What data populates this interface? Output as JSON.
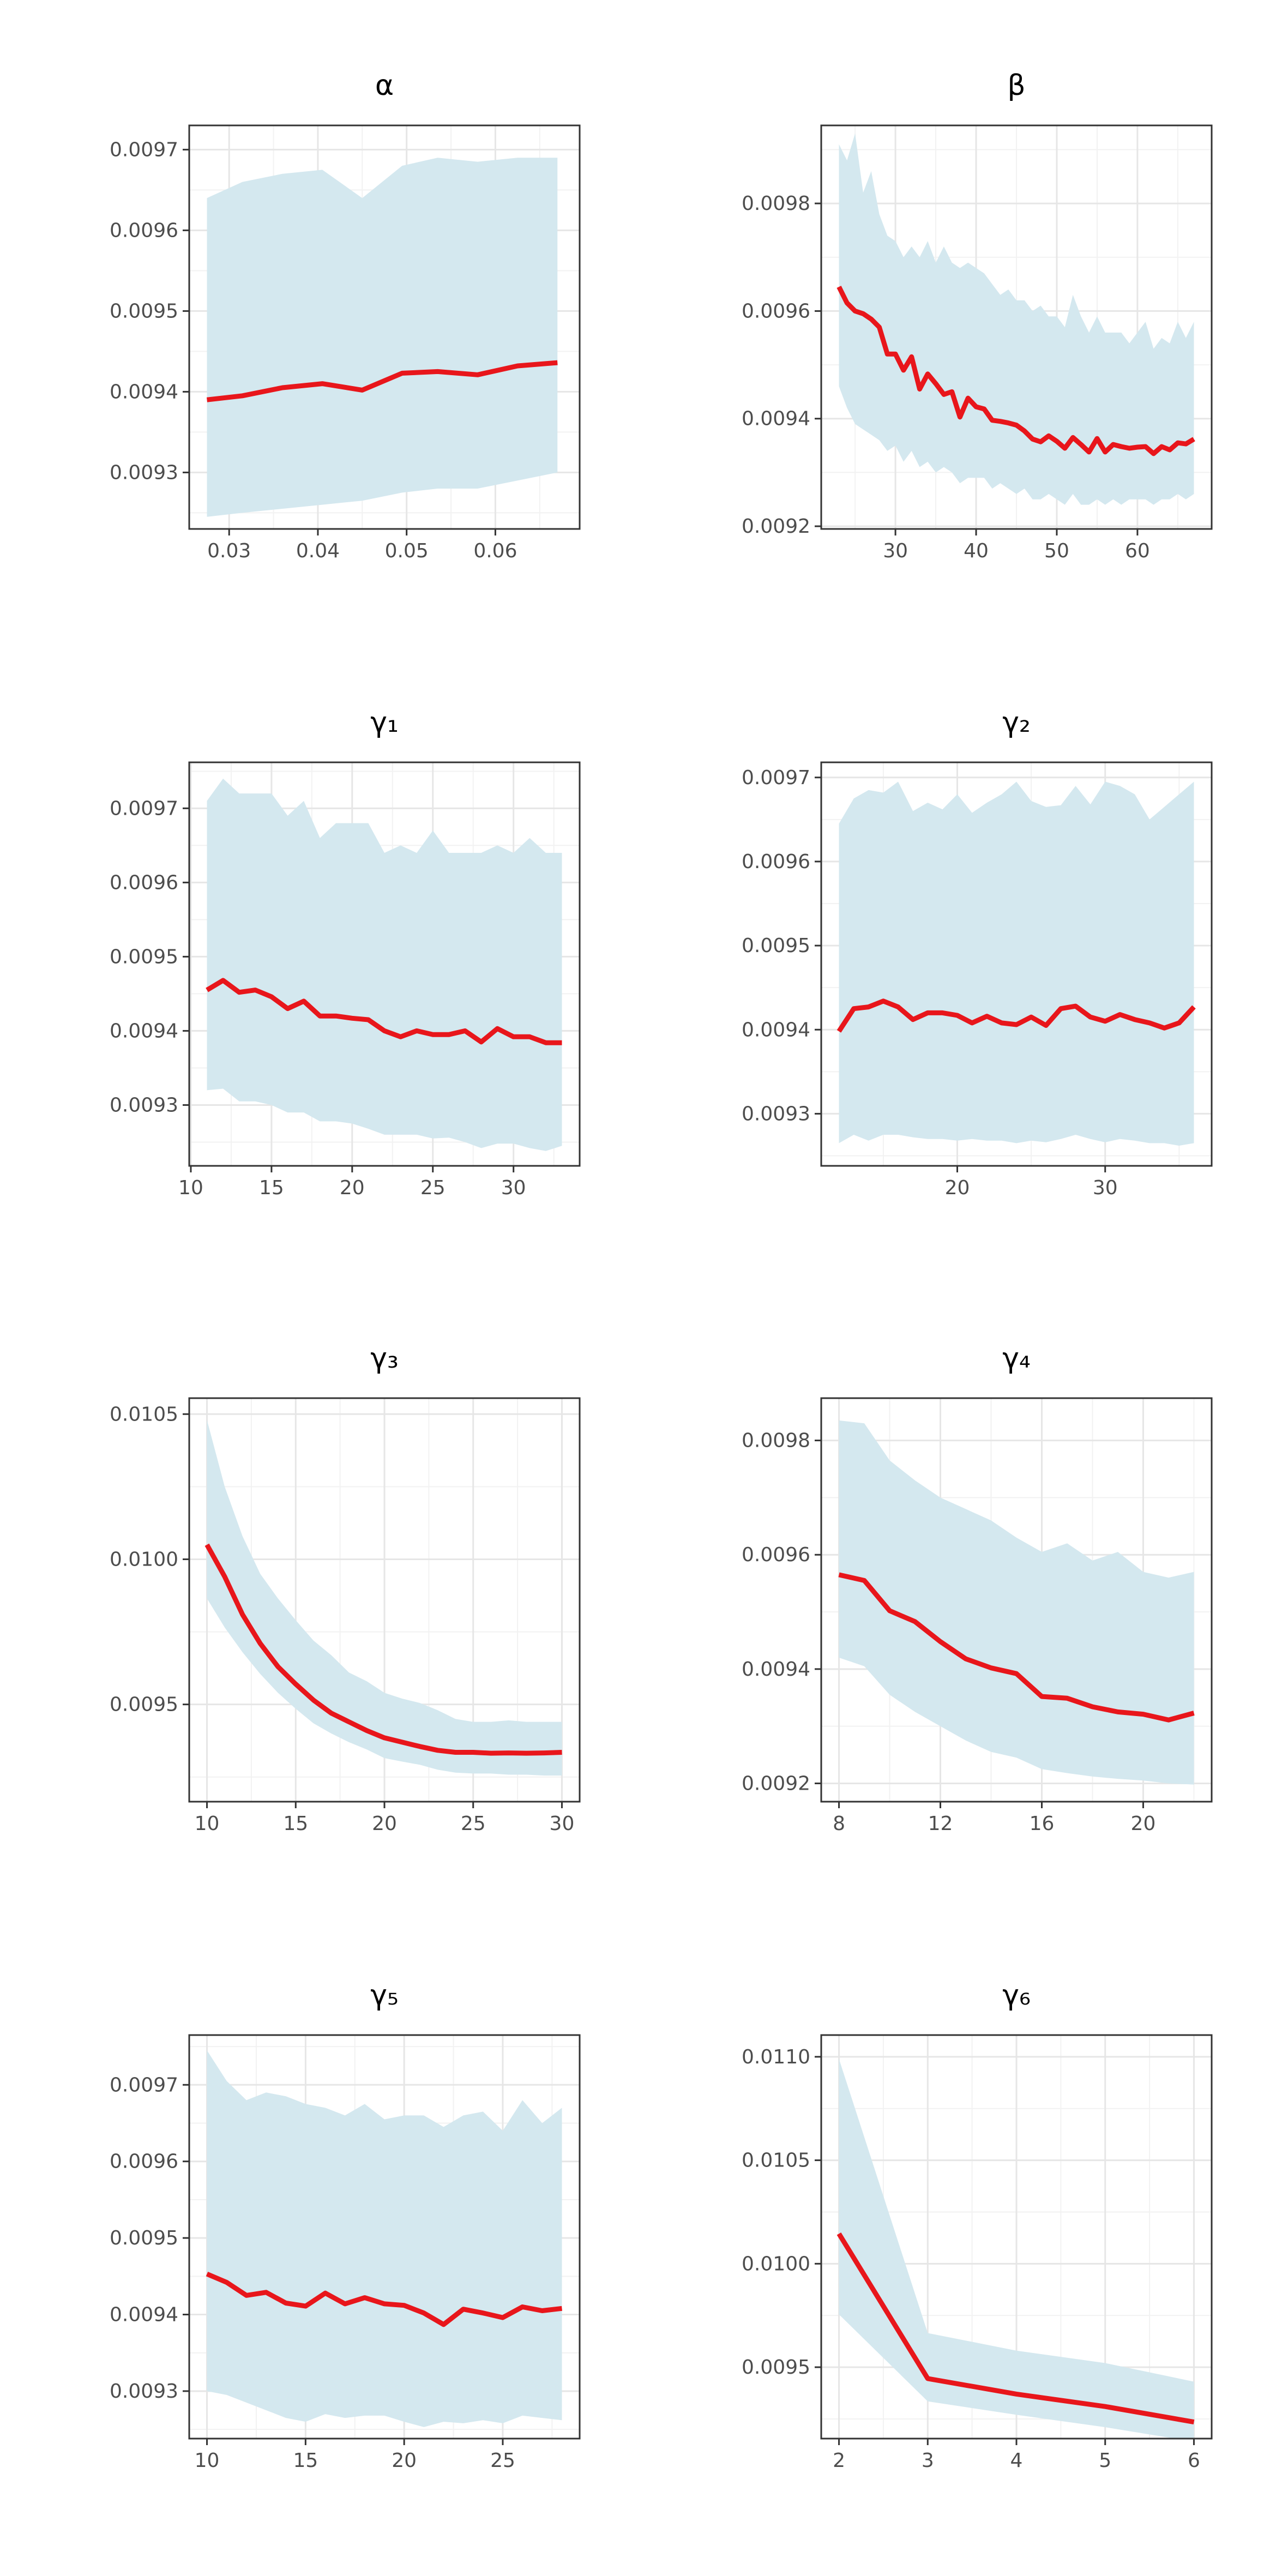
{
  "colors": {
    "line": "#e8161b",
    "band": "#d4e8ef",
    "grid_major": "#e6e6e6",
    "grid_minor": "#f2f2f2",
    "frame": "#333333",
    "tick_text": "#4d4d4d"
  },
  "chart_data": [
    {
      "type": "area",
      "title": "α",
      "xlabel": "",
      "ylabel": "",
      "grid": true,
      "xlim": [
        0.0255,
        0.0695
      ],
      "ylim": [
        0.00923,
        0.00973
      ],
      "xticks": [
        0.03,
        0.04,
        0.05,
        0.06
      ],
      "xtick_labels": [
        "0.03",
        "0.04",
        "0.05",
        "0.06"
      ],
      "yticks": [
        0.0093,
        0.0094,
        0.0095,
        0.0096,
        0.0097
      ],
      "ytick_labels": [
        "0.0093",
        "0.0094",
        "0.0095",
        "0.0096",
        "0.0097"
      ],
      "x": [
        0.0275,
        0.0315,
        0.036,
        0.0405,
        0.045,
        0.0495,
        0.0535,
        0.058,
        0.0625,
        0.067
      ],
      "mean": [
        0.00939,
        0.009395,
        0.009405,
        0.00941,
        0.009402,
        0.009423,
        0.009425,
        0.009421,
        0.009432,
        0.009436
      ],
      "upper": [
        0.00964,
        0.00966,
        0.00967,
        0.009675,
        0.00964,
        0.00968,
        0.00969,
        0.009685,
        0.00969,
        0.00969
      ],
      "lower": [
        0.009245,
        0.00925,
        0.009255,
        0.00926,
        0.009265,
        0.009275,
        0.00928,
        0.00928,
        0.00929,
        0.0093
      ]
    },
    {
      "type": "area",
      "title": "β",
      "xlabel": "",
      "ylabel": "",
      "grid": true,
      "xlim": [
        20.8,
        69.2
      ],
      "ylim": [
        0.009195,
        0.009945
      ],
      "xticks": [
        30,
        40,
        50,
        60
      ],
      "xtick_labels": [
        "30",
        "40",
        "50",
        "60"
      ],
      "yticks": [
        0.0092,
        0.0094,
        0.0096,
        0.0098
      ],
      "ytick_labels": [
        "0.0092",
        "0.0094",
        "0.0096",
        "0.0098"
      ],
      "x": [
        23,
        24,
        25,
        26,
        27,
        28,
        29,
        30,
        31,
        32,
        33,
        34,
        35,
        36,
        37,
        38,
        39,
        40,
        41,
        42,
        43,
        44,
        45,
        46,
        47,
        48,
        49,
        50,
        51,
        52,
        53,
        54,
        55,
        56,
        57,
        58,
        59,
        60,
        61,
        62,
        63,
        64,
        65,
        66,
        67
      ],
      "mean": [
        0.009645,
        0.009615,
        0.0096,
        0.009595,
        0.009585,
        0.00957,
        0.00952,
        0.00952,
        0.00949,
        0.009515,
        0.009455,
        0.009483,
        0.009465,
        0.009445,
        0.00945,
        0.009403,
        0.009438,
        0.009422,
        0.009418,
        0.009397,
        0.009395,
        0.009392,
        0.009388,
        0.009377,
        0.009362,
        0.009357,
        0.009368,
        0.009358,
        0.009345,
        0.009365,
        0.009352,
        0.009338,
        0.009363,
        0.009338,
        0.009352,
        0.009348,
        0.009345,
        0.009347,
        0.009348,
        0.009335,
        0.009348,
        0.009342,
        0.009355,
        0.009353,
        0.009362
      ],
      "upper": [
        0.00991,
        0.00988,
        0.00993,
        0.00982,
        0.00986,
        0.00978,
        0.00974,
        0.00973,
        0.0097,
        0.00972,
        0.0097,
        0.00973,
        0.00969,
        0.00972,
        0.00969,
        0.00968,
        0.00969,
        0.00968,
        0.00967,
        0.00965,
        0.00963,
        0.00964,
        0.00962,
        0.00962,
        0.0096,
        0.00961,
        0.00959,
        0.00959,
        0.00957,
        0.00963,
        0.00959,
        0.00956,
        0.00959,
        0.00956,
        0.00956,
        0.00956,
        0.00954,
        0.00956,
        0.00958,
        0.00953,
        0.00955,
        0.00954,
        0.00958,
        0.00955,
        0.00958
      ],
      "lower": [
        0.00946,
        0.00942,
        0.00939,
        0.00938,
        0.00937,
        0.00936,
        0.00934,
        0.00935,
        0.00932,
        0.00934,
        0.00931,
        0.00932,
        0.0093,
        0.00931,
        0.0093,
        0.00928,
        0.00929,
        0.00929,
        0.00929,
        0.00927,
        0.00928,
        0.00927,
        0.00926,
        0.00927,
        0.00925,
        0.00925,
        0.00926,
        0.00925,
        0.00924,
        0.00926,
        0.00924,
        0.00924,
        0.00925,
        0.00924,
        0.00925,
        0.00924,
        0.00925,
        0.00925,
        0.00925,
        0.00924,
        0.00925,
        0.00925,
        0.00926,
        0.00925,
        0.00926
      ]
    },
    {
      "type": "area",
      "title": "γ₁",
      "xlabel": "",
      "ylabel": "",
      "grid": true,
      "xlim": [
        9.9,
        34.1
      ],
      "ylim": [
        0.009218,
        0.009762
      ],
      "xticks": [
        10,
        15,
        20,
        25,
        30
      ],
      "xtick_labels": [
        "10",
        "15",
        "20",
        "25",
        "30"
      ],
      "yticks": [
        0.0093,
        0.0094,
        0.0095,
        0.0096,
        0.0097
      ],
      "ytick_labels": [
        "0.0093",
        "0.0094",
        "0.0095",
        "0.0096",
        "0.0097"
      ],
      "x": [
        11,
        12,
        13,
        14,
        15,
        16,
        17,
        18,
        19,
        20,
        21,
        22,
        23,
        24,
        25,
        26,
        27,
        28,
        29,
        30,
        31,
        32,
        33
      ],
      "mean": [
        0.009455,
        0.009468,
        0.009452,
        0.009455,
        0.009446,
        0.00943,
        0.00944,
        0.00942,
        0.00942,
        0.009417,
        0.009415,
        0.0094,
        0.009392,
        0.0094,
        0.009395,
        0.009395,
        0.0094,
        0.009385,
        0.009403,
        0.009392,
        0.009392,
        0.009384,
        0.009384
      ],
      "upper": [
        0.00971,
        0.00974,
        0.00972,
        0.00972,
        0.00972,
        0.00969,
        0.00971,
        0.00966,
        0.00968,
        0.00968,
        0.00968,
        0.00964,
        0.00965,
        0.00964,
        0.00967,
        0.00964,
        0.00964,
        0.00964,
        0.00965,
        0.00964,
        0.00966,
        0.00964,
        0.00964
      ],
      "lower": [
        0.00932,
        0.009322,
        0.009305,
        0.009305,
        0.0093,
        0.00929,
        0.00929,
        0.009278,
        0.009278,
        0.009275,
        0.009268,
        0.00926,
        0.00926,
        0.00926,
        0.009255,
        0.009256,
        0.00925,
        0.009242,
        0.009248,
        0.009248,
        0.009242,
        0.009238,
        0.009245
      ]
    },
    {
      "type": "area",
      "title": "γ₂",
      "xlabel": "",
      "ylabel": "",
      "grid": true,
      "xlim": [
        10.8,
        37.2
      ],
      "ylim": [
        0.009238,
        0.009718
      ],
      "xticks": [
        20,
        30
      ],
      "xtick_labels": [
        "20",
        "30"
      ],
      "yticks": [
        0.0093,
        0.0094,
        0.0095,
        0.0096,
        0.0097
      ],
      "ytick_labels": [
        "0.0093",
        "0.0094",
        "0.0095",
        "0.0096",
        "0.0097"
      ],
      "x": [
        12,
        13,
        14,
        15,
        16,
        17,
        18,
        19,
        20,
        21,
        22,
        23,
        24,
        25,
        26,
        27,
        28,
        29,
        30,
        31,
        32,
        33,
        34,
        35,
        36
      ],
      "mean": [
        0.009398,
        0.009425,
        0.009427,
        0.009434,
        0.009427,
        0.009412,
        0.00942,
        0.00942,
        0.009417,
        0.009408,
        0.009416,
        0.009408,
        0.009406,
        0.009415,
        0.009405,
        0.009425,
        0.009428,
        0.009415,
        0.00941,
        0.009418,
        0.009412,
        0.009408,
        0.009402,
        0.009408,
        0.009427
      ],
      "upper": [
        0.009645,
        0.009675,
        0.009685,
        0.009682,
        0.009695,
        0.00966,
        0.00967,
        0.009662,
        0.00968,
        0.009658,
        0.00967,
        0.00968,
        0.009695,
        0.009672,
        0.009665,
        0.009667,
        0.00969,
        0.009668,
        0.009695,
        0.00969,
        0.00968,
        0.00965,
        0.009665,
        0.00968,
        0.009695
      ],
      "lower": [
        0.009265,
        0.009275,
        0.009268,
        0.009275,
        0.009275,
        0.009272,
        0.00927,
        0.00927,
        0.009268,
        0.00927,
        0.009268,
        0.009268,
        0.009265,
        0.009268,
        0.009266,
        0.00927,
        0.009275,
        0.00927,
        0.009266,
        0.00927,
        0.009268,
        0.009265,
        0.009265,
        0.009262,
        0.009265
      ]
    },
    {
      "type": "area",
      "title": "γ₃",
      "xlabel": "",
      "ylabel": "",
      "grid": true,
      "xlim": [
        9.0,
        31.0
      ],
      "ylim": [
        0.009165,
        0.010555
      ],
      "xticks": [
        10,
        15,
        20,
        25,
        30
      ],
      "xtick_labels": [
        "10",
        "15",
        "20",
        "25",
        "30"
      ],
      "yticks": [
        0.0095,
        0.01,
        0.0105
      ],
      "ytick_labels": [
        "0.0095",
        "0.0100",
        "0.0105"
      ],
      "x": [
        10,
        11,
        12,
        13,
        14,
        15,
        16,
        17,
        18,
        19,
        20,
        21,
        22,
        23,
        24,
        25,
        26,
        27,
        28,
        29,
        30
      ],
      "mean": [
        0.01005,
        0.00994,
        0.00981,
        0.00971,
        0.00963,
        0.00957,
        0.009515,
        0.00947,
        0.00944,
        0.00941,
        0.009385,
        0.00937,
        0.009355,
        0.009342,
        0.009335,
        0.009335,
        0.009332,
        0.009333,
        0.009332,
        0.009333,
        0.009335
      ],
      "upper": [
        0.01048,
        0.01025,
        0.01008,
        0.00995,
        0.009865,
        0.00979,
        0.00972,
        0.00967,
        0.00961,
        0.00958,
        0.00954,
        0.00952,
        0.009505,
        0.00948,
        0.00945,
        0.00944,
        0.00944,
        0.009445,
        0.00944,
        0.00944,
        0.00944
      ],
      "lower": [
        0.009865,
        0.009765,
        0.00968,
        0.009605,
        0.00954,
        0.009485,
        0.009435,
        0.0094,
        0.00937,
        0.009345,
        0.009315,
        0.009303,
        0.009292,
        0.009275,
        0.009265,
        0.009262,
        0.009262,
        0.009258,
        0.009258,
        0.009255,
        0.009255
      ]
    },
    {
      "type": "area",
      "title": "γ₄",
      "xlabel": "",
      "ylabel": "",
      "grid": true,
      "xlim": [
        7.3,
        22.7
      ],
      "ylim": [
        0.009168,
        0.009874
      ],
      "xticks": [
        8,
        12,
        16,
        20
      ],
      "xtick_labels": [
        "8",
        "12",
        "16",
        "20"
      ],
      "yticks": [
        0.0092,
        0.0094,
        0.0096,
        0.0098
      ],
      "ytick_labels": [
        "0.0092",
        "0.0094",
        "0.0096",
        "0.0098"
      ],
      "x": [
        8,
        9,
        10,
        11,
        12,
        13,
        14,
        15,
        16,
        17,
        18,
        19,
        20,
        21,
        22
      ],
      "mean": [
        0.009565,
        0.009555,
        0.009502,
        0.009483,
        0.009448,
        0.009418,
        0.009402,
        0.009392,
        0.009352,
        0.009349,
        0.009334,
        0.009325,
        0.009321,
        0.009311,
        0.009323
      ],
      "upper": [
        0.009835,
        0.00983,
        0.009765,
        0.00973,
        0.0097,
        0.00968,
        0.00966,
        0.00963,
        0.009605,
        0.00962,
        0.00959,
        0.009605,
        0.00957,
        0.00956,
        0.00957
      ],
      "lower": [
        0.00942,
        0.009405,
        0.009355,
        0.009325,
        0.0093,
        0.009275,
        0.009255,
        0.009245,
        0.009225,
        0.009218,
        0.009212,
        0.009208,
        0.009205,
        0.0092,
        0.009198
      ]
    },
    {
      "type": "area",
      "title": "γ₅",
      "xlabel": "",
      "ylabel": "",
      "grid": true,
      "xlim": [
        9.1,
        28.9
      ],
      "ylim": [
        0.009238,
        0.009765
      ],
      "xticks": [
        10,
        15,
        20,
        25
      ],
      "xtick_labels": [
        "10",
        "15",
        "20",
        "25"
      ],
      "yticks": [
        0.0093,
        0.0094,
        0.0095,
        0.0096,
        0.0097
      ],
      "ytick_labels": [
        "0.0093",
        "0.0094",
        "0.0095",
        "0.0096",
        "0.0097"
      ],
      "x": [
        10,
        11,
        12,
        13,
        14,
        15,
        16,
        17,
        18,
        19,
        20,
        21,
        22,
        23,
        24,
        25,
        26,
        27,
        28
      ],
      "mean": [
        0.009453,
        0.009442,
        0.009425,
        0.009429,
        0.009415,
        0.009411,
        0.009428,
        0.009414,
        0.009422,
        0.009414,
        0.009412,
        0.009402,
        0.009387,
        0.009407,
        0.009402,
        0.009396,
        0.00941,
        0.009405,
        0.009408
      ],
      "upper": [
        0.009745,
        0.009705,
        0.00968,
        0.00969,
        0.009685,
        0.009675,
        0.00967,
        0.00966,
        0.009675,
        0.009655,
        0.00966,
        0.00966,
        0.009645,
        0.00966,
        0.009665,
        0.00964,
        0.00968,
        0.00965,
        0.00967
      ],
      "lower": [
        0.0093,
        0.009295,
        0.009285,
        0.009275,
        0.009265,
        0.00926,
        0.00927,
        0.009265,
        0.009268,
        0.009268,
        0.00926,
        0.009253,
        0.00926,
        0.009258,
        0.009262,
        0.009258,
        0.009268,
        0.009265,
        0.009262
      ]
    },
    {
      "type": "area",
      "title": "γ₆",
      "xlabel": "",
      "ylabel": "",
      "grid": true,
      "xlim": [
        1.8,
        6.2
      ],
      "ylim": [
        0.009155,
        0.011105
      ],
      "xticks": [
        2,
        3,
        4,
        5,
        6
      ],
      "xtick_labels": [
        "2",
        "3",
        "4",
        "5",
        "6"
      ],
      "yticks": [
        0.0095,
        0.01,
        0.0105,
        0.011
      ],
      "ytick_labels": [
        "0.0095",
        "0.0100",
        "0.0105",
        "0.0110"
      ],
      "x": [
        2,
        3,
        4,
        5,
        6
      ],
      "mean": [
        0.010145,
        0.009445,
        0.00937,
        0.00931,
        0.009235
      ],
      "upper": [
        0.01099,
        0.009665,
        0.00958,
        0.00952,
        0.00943
      ],
      "lower": [
        0.009755,
        0.009335,
        0.00927,
        0.00921,
        0.00914
      ]
    }
  ]
}
